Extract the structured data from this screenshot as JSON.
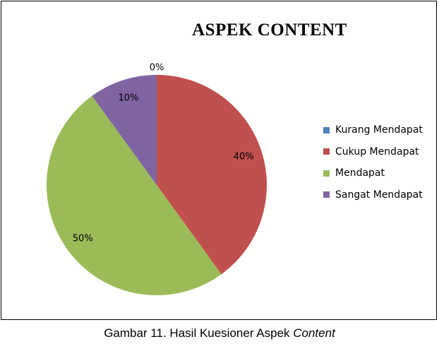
{
  "chart_data": {
    "type": "pie",
    "title": "ASPEK CONTENT",
    "categories": [
      "Kurang Mendapat",
      "Cukup Mendapat",
      "Mendapat",
      "Sangat Mendapat"
    ],
    "values": [
      0,
      40,
      50,
      10
    ],
    "data_labels": [
      "0%",
      "40%",
      "50%",
      "10%"
    ],
    "colors": [
      "#4f81bd",
      "#c0504d",
      "#9bbb59",
      "#8064a2"
    ],
    "legend_position": "right",
    "start_angle": "top",
    "direction": "clockwise"
  },
  "caption": {
    "prefix": "Gambar 11. Hasil Kuesioner Aspek ",
    "emphasis": "Content"
  }
}
